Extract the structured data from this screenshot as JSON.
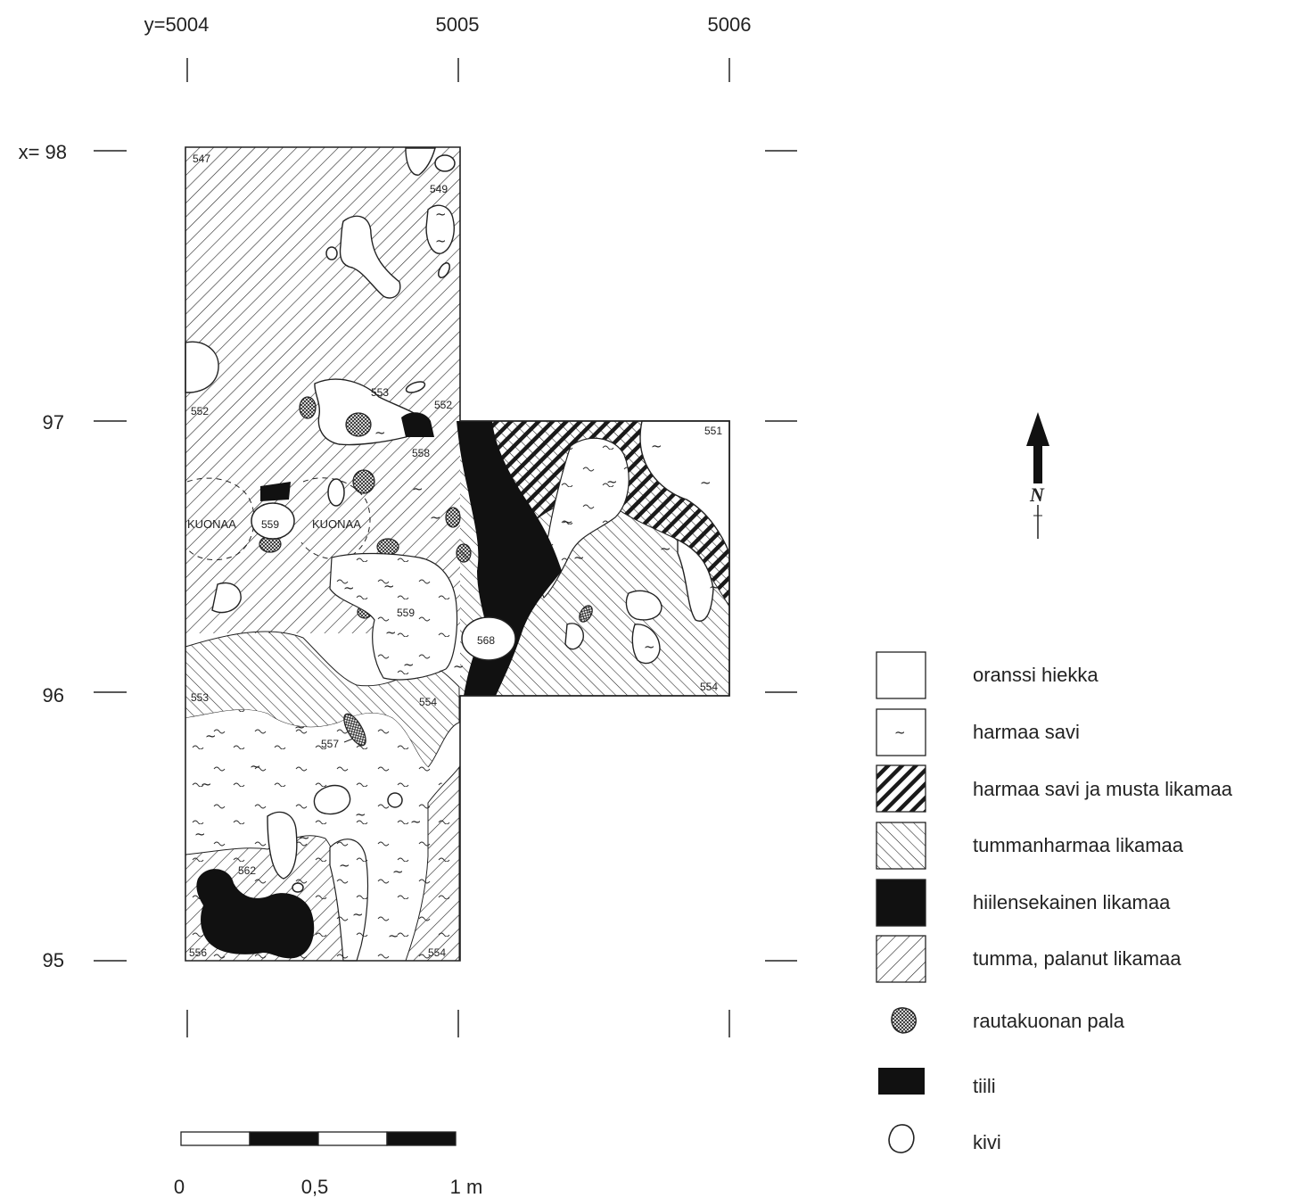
{
  "title": "",
  "y_axis_labels": [
    "y=5004",
    "5005",
    "5006"
  ],
  "x_axis_labels": [
    "x= 98",
    "97",
    "96",
    "95"
  ],
  "feature_numbers": [
    "547",
    "549",
    "552",
    "553",
    "558",
    "558",
    "552",
    "559",
    "559",
    "568",
    "553",
    "554",
    "557",
    "562",
    "556",
    "554",
    "551",
    "554"
  ],
  "kuonaa_labels": [
    "KUONAA",
    "KUONAA"
  ],
  "north_label": "N",
  "scale_bar_labels": [
    "0",
    "0,5",
    "1 m"
  ],
  "legend": [
    {
      "label": "oranssi hiekka",
      "symbol": "white-box"
    },
    {
      "label": "harmaa savi",
      "symbol": "tilde-box"
    },
    {
      "label": "harmaa savi ja musta likamaa",
      "symbol": "dense-hatch"
    },
    {
      "label": "tummanharmaa likamaa",
      "symbol": "backslash-hatch"
    },
    {
      "label": "hiilensekainen likamaa",
      "symbol": "black-box"
    },
    {
      "label": "tumma, palanut likamaa",
      "symbol": "slash-hatch"
    },
    {
      "label": "rautakuonan pala",
      "symbol": "crosshatch-blob"
    },
    {
      "label": "tiili",
      "symbol": "black-small-box"
    },
    {
      "label": "kivi",
      "symbol": "stone-outline"
    }
  ]
}
